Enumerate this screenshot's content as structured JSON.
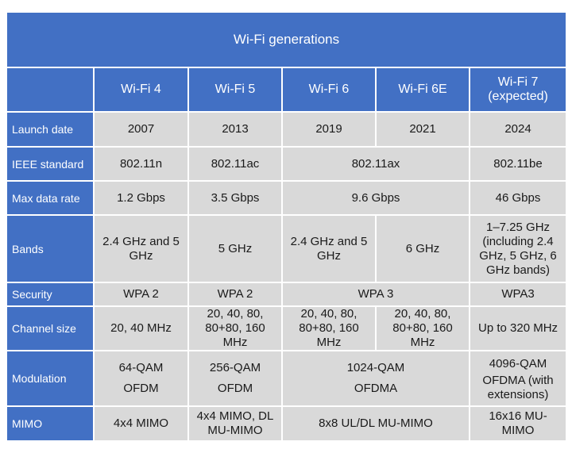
{
  "title": "Wi-Fi generations",
  "columns": [
    "Wi-Fi 4",
    "Wi-Fi 5",
    "Wi-Fi 6",
    "Wi-Fi 6E",
    "Wi-Fi 7\n(expected)"
  ],
  "rows": {
    "launch_date": {
      "label": "Launch date",
      "wifi4": "2007",
      "wifi5": "2013",
      "wifi6": "2019",
      "wifi6e": "2021",
      "wifi7": "2024"
    },
    "ieee_standard": {
      "label": "IEEE standard",
      "wifi4": "802.11n",
      "wifi5": "802.11ac",
      "wifi6_6e": "802.11ax",
      "wifi7": "802.11be"
    },
    "max_data_rate": {
      "label": "Max data rate",
      "wifi4": "1.2 Gbps",
      "wifi5": "3.5 Gbps",
      "wifi6_6e": "9.6 Gbps",
      "wifi7": "46 Gbps"
    },
    "bands": {
      "label": "Bands",
      "wifi4": "2.4 GHz and 5 GHz",
      "wifi5": "5 GHz",
      "wifi6": "2.4 GHz and 5 GHz",
      "wifi6e": "6 GHz",
      "wifi7": "1–7.25 GHz (including 2.4 GHz, 5 GHz, 6 GHz bands)"
    },
    "security": {
      "label": "Security",
      "wifi4": "WPA 2",
      "wifi5": "WPA 2",
      "wifi6_6e": "WPA 3",
      "wifi7": "WPA3"
    },
    "channel_size": {
      "label": "Channel size",
      "wifi4": "20, 40 MHz",
      "wifi5": "20, 40, 80, 80+80, 160 MHz",
      "wifi6": "20, 40, 80, 80+80, 160 MHz",
      "wifi6e": "20, 40, 80, 80+80, 160 MHz",
      "wifi7": "Up to 320 MHz"
    },
    "modulation": {
      "label": "Modulation",
      "wifi4": [
        "64-QAM",
        "OFDM"
      ],
      "wifi5": [
        "256-QAM",
        "OFDM"
      ],
      "wifi6_6e": [
        "1024-QAM",
        "OFDMA"
      ],
      "wifi7": [
        "4096-QAM",
        "OFDMA (with extensions)"
      ]
    },
    "mimo": {
      "label": "MIMO",
      "wifi4": "4x4 MIMO",
      "wifi5": "4x4 MIMO, DL MU-MIMO",
      "wifi6_6e": "8x8 UL/DL MU-MIMO",
      "wifi7": "16x16 MU-MIMO"
    }
  }
}
